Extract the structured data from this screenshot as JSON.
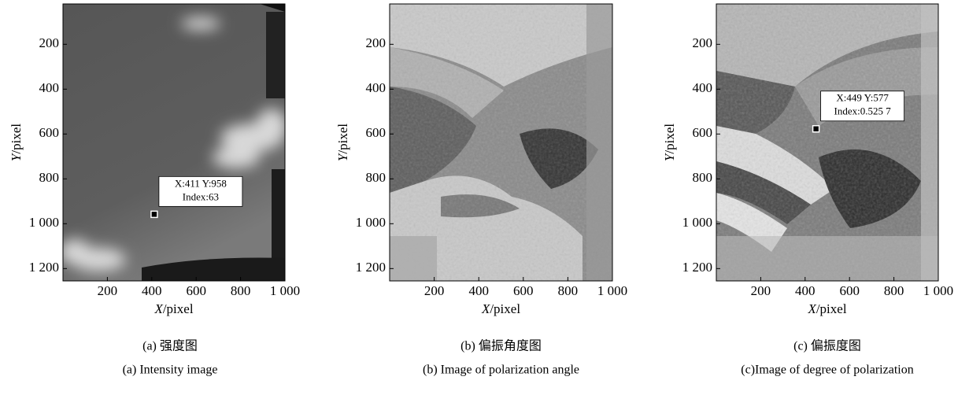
{
  "panels": [
    {
      "xlim": [
        0,
        1000
      ],
      "ylim": [
        20,
        1255
      ],
      "xticks": [
        200,
        400,
        600,
        800,
        {
          "value": 1000,
          "label": "1 000"
        }
      ],
      "yticks": [
        200,
        400,
        600,
        800,
        {
          "value": 1000,
          "label": "1 000"
        },
        {
          "value": 1200,
          "label": "1 200"
        }
      ],
      "xlabel": {
        "var": "X",
        "unit": "/pixel"
      },
      "ylabel": {
        "var": "Y",
        "unit": "/pixel"
      },
      "datatip": {
        "x": 411,
        "y": 958,
        "lines": [
          "X:411 Y:958",
          "Index:63"
        ]
      },
      "caption_cn": "(a) 强度图",
      "caption_en": "(a) Intensity image"
    },
    {
      "xlim": [
        0,
        1000
      ],
      "ylim": [
        20,
        1255
      ],
      "xticks": [
        200,
        400,
        600,
        800,
        {
          "value": 1000,
          "label": "1 000"
        }
      ],
      "yticks": [
        200,
        400,
        600,
        800,
        {
          "value": 1000,
          "label": "1 000"
        },
        {
          "value": 1200,
          "label": "1 200"
        }
      ],
      "xlabel": {
        "var": "X",
        "unit": "/pixel"
      },
      "ylabel": {
        "var": "Y",
        "unit": "/pixel"
      },
      "caption_cn": "(b) 偏振角度图",
      "caption_en": "(b) Image of polarization angle"
    },
    {
      "xlim": [
        0,
        1000
      ],
      "ylim": [
        20,
        1255
      ],
      "xticks": [
        200,
        400,
        600,
        800,
        {
          "value": 1000,
          "label": "1 000"
        }
      ],
      "yticks": [
        200,
        400,
        600,
        800,
        {
          "value": 1000,
          "label": "1 000"
        },
        {
          "value": 1200,
          "label": "1 200"
        }
      ],
      "xlabel": {
        "var": "X",
        "unit": "/pixel"
      },
      "ylabel": {
        "var": "Y",
        "unit": "/pixel"
      },
      "datatip": {
        "x": 449,
        "y": 577,
        "lines": [
          "X:449 Y:577",
          "Index:0.525 7"
        ]
      },
      "caption_cn": "(c) 偏振度图",
      "caption_en": "(c)Image of degree of polarization"
    }
  ]
}
